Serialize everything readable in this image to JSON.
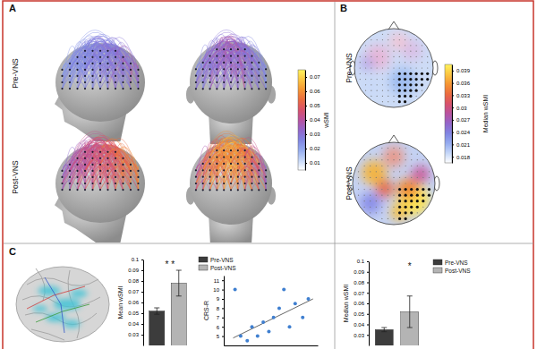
{
  "chart_data": [
    {
      "type": "connectivity",
      "panel": "A",
      "rows": [
        "Pre-VNS",
        "Post-VNS"
      ],
      "colorbar": {
        "label": "wSMI",
        "range": [
          0.005,
          0.075
        ],
        "ticks": [
          0.01,
          0.02,
          0.03,
          0.04,
          0.05,
          0.06,
          0.07
        ]
      }
    },
    {
      "type": "topomap",
      "panel": "B",
      "rows": [
        "Pre-VNS",
        "Post-VNS"
      ],
      "colorbar": {
        "label": "Median wSMI",
        "range": [
          0.0165,
          0.0405
        ],
        "ticks": [
          0.018,
          0.021,
          0.024,
          0.027,
          0.03,
          0.033,
          0.036,
          0.039
        ]
      }
    },
    {
      "type": "bar",
      "panel": "C",
      "y_label": "Mean wSMI",
      "series": [
        {
          "name": "Pre-VNS",
          "color": "#3c3c3c",
          "values": [
            0.052
          ],
          "error": [
            0.003
          ]
        },
        {
          "name": "Post-VNS",
          "color": "#b4b4b4",
          "values": [
            0.078
          ],
          "error": [
            0.012
          ]
        }
      ],
      "ylim": [
        0.02,
        0.1
      ],
      "yticks": [
        0.03,
        0.04,
        0.05,
        0.06,
        0.07,
        0.08,
        0.09,
        0.1
      ],
      "annotation": "* *",
      "legend": "right"
    },
    {
      "type": "scatter",
      "y_label": "CRS-R",
      "x": [
        1.2,
        1.8,
        2.5,
        3.0,
        3.6,
        4.2,
        4.8,
        5.3,
        5.9,
        6.4,
        7.0,
        7.6,
        8.4,
        9.0
      ],
      "values": [
        10,
        5,
        4.5,
        6,
        5,
        6.5,
        5.5,
        7,
        8,
        10,
        6,
        8.5,
        7,
        9
      ],
      "color": "#3f7fd0",
      "xlim": [
        0,
        10
      ],
      "ylim": [
        4,
        11.5
      ],
      "yticks": [
        5,
        6,
        7,
        8,
        9,
        10,
        11
      ],
      "tick_labels": "y",
      "fit_line": {
        "x": [
          1,
          9.5
        ],
        "values": [
          4.8,
          9
        ]
      }
    },
    {
      "type": "bar",
      "y_label": "Median wSMI",
      "series": [
        {
          "name": "Pre-VNS",
          "color": "#3c3c3c",
          "values": [
            0.035
          ],
          "error": [
            0.002
          ]
        },
        {
          "name": "Post-VNS",
          "color": "#b4b4b4",
          "values": [
            0.052
          ],
          "error": [
            0.015
          ]
        }
      ],
      "ylim": [
        0.02,
        0.1
      ],
      "yticks": [
        0.03,
        0.04,
        0.05,
        0.06,
        0.07,
        0.08,
        0.09,
        0.1
      ],
      "annotation": "*",
      "legend": "right"
    }
  ]
}
